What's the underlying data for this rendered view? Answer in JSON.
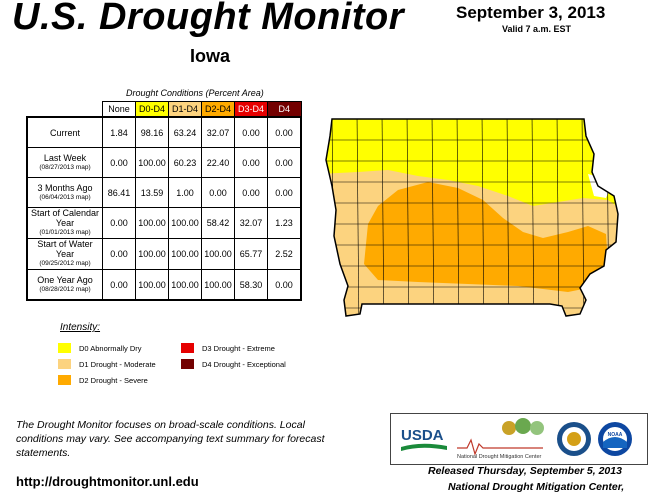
{
  "header": {
    "title": "U.S. Drought Monitor",
    "state": "Iowa",
    "date": "September 3, 2013",
    "valid": "Valid 7 a.m. EST"
  },
  "table": {
    "caption": "Drought Conditions (Percent Area)",
    "columns": [
      "None",
      "D0-D4",
      "D1-D4",
      "D2-D4",
      "D3-D4",
      "D4"
    ],
    "rows": [
      {
        "label": "Current",
        "sub": "",
        "values": [
          "1.84",
          "98.16",
          "63.24",
          "32.07",
          "0.00",
          "0.00"
        ]
      },
      {
        "label": "Last Week",
        "sub": "(08/27/2013 map)",
        "values": [
          "0.00",
          "100.00",
          "60.23",
          "22.40",
          "0.00",
          "0.00"
        ]
      },
      {
        "label": "3 Months Ago",
        "sub": "(06/04/2013 map)",
        "values": [
          "86.41",
          "13.59",
          "1.00",
          "0.00",
          "0.00",
          "0.00"
        ]
      },
      {
        "label": "Start of Calendar Year",
        "sub": "(01/01/2013 map)",
        "values": [
          "0.00",
          "100.00",
          "100.00",
          "58.42",
          "32.07",
          "1.23"
        ]
      },
      {
        "label": "Start of Water Year",
        "sub": "(09/25/2012 map)",
        "values": [
          "0.00",
          "100.00",
          "100.00",
          "100.00",
          "65.77",
          "2.52"
        ]
      },
      {
        "label": "One Year Ago",
        "sub": "(08/28/2012 map)",
        "values": [
          "0.00",
          "100.00",
          "100.00",
          "100.00",
          "58.30",
          "0.00"
        ]
      }
    ]
  },
  "legend": {
    "title": "Intensity:",
    "items": [
      {
        "label": "D0 Abnormally Dry",
        "color": "#ffff00"
      },
      {
        "label": "D1 Drought - Moderate",
        "color": "#fcd37f"
      },
      {
        "label": "D2 Drought - Severe",
        "color": "#ffaa00"
      },
      {
        "label": "D3 Drought - Extreme",
        "color": "#e60000"
      },
      {
        "label": "D4 Drought - Exceptional",
        "color": "#730000"
      }
    ]
  },
  "footer": {
    "note": "The Drought Monitor focuses on broad-scale conditions. Local conditions may vary. See accompanying text summary for forecast statements.",
    "url": "http://droughtmonitor.unl.edu",
    "released": "Released Thursday, September 5, 2013",
    "author": "National Drought Mitigation Center,"
  },
  "logos": {
    "usda": "USDA",
    "ndmc": "National Drought Mitigation Center",
    "noaa": "NOAA"
  },
  "map": {
    "colors": {
      "none": "#ffffff",
      "d0": "#ffff00",
      "d1": "#fcd37f",
      "d2": "#ffaa00",
      "border": "#000000"
    }
  }
}
